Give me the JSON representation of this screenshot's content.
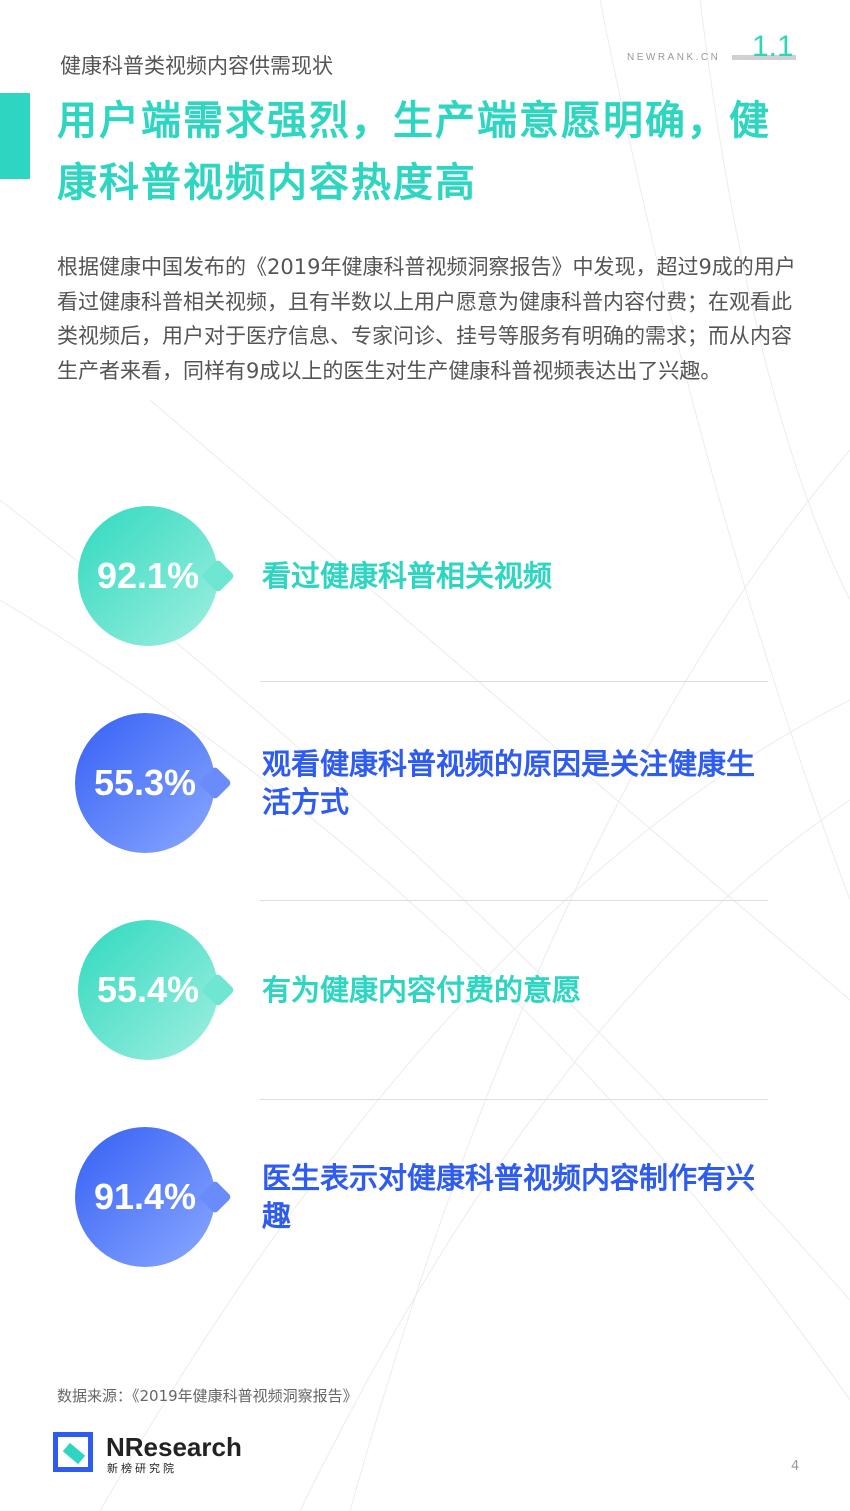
{
  "header": {
    "section": "健康科普类视频内容供需现状",
    "brand": "NEWRANK.CN",
    "page_index": "1.1"
  },
  "title": "用户端需求强烈，生产端意愿明确，健康科普视频内容热度高",
  "body": "根据健康中国发布的《2019年健康科普视频洞察报告》中发现，超过9成的用户看过健康科普相关视频，且有半数以上用户愿意为健康科普内容付费；在观看此类视频后，用户对于医疗信息、专家问诊、挂号等服务有明确的需求；而从内容生产者来看，同样有9成以上的医生对生产健康科普视频表达出了兴趣。",
  "stats": [
    {
      "value": "92.1%",
      "label": "看过健康科普相关视频",
      "color": "#2ed6c2"
    },
    {
      "value": "55.3%",
      "label": "观看健康科普视频的原因是关注健康生活方式",
      "color": "#2f5cf0"
    },
    {
      "value": "55.4%",
      "label": "有为健康内容付费的意愿",
      "color": "#2ed6c2"
    },
    {
      "value": "91.4%",
      "label": "医生表示对健康科普视频内容制作有兴趣",
      "color": "#2f5cf0"
    }
  ],
  "footer": {
    "source": "数据来源：《2019年健康科普视频洞察报告》",
    "logo_name": "NResearch",
    "logo_sub": "新榜研究院",
    "page_number": "4"
  }
}
